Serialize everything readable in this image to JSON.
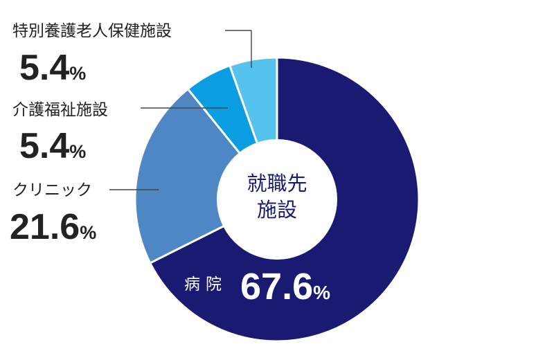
{
  "chart_data": {
    "type": "pie",
    "center_label": [
      "就職先",
      "施設"
    ],
    "categories": [
      "病院",
      "クリニック",
      "介護福祉施設",
      "特別養護老人保健施設"
    ],
    "values": [
      67.6,
      21.6,
      5.4,
      5.4
    ],
    "value_labels": [
      "67.6",
      "21.6",
      "5.4",
      "5.4"
    ],
    "unit": "%",
    "colors": [
      "#1b1a72",
      "#4f87c5",
      "#0a9de2",
      "#56c3ef"
    ],
    "start": "top",
    "direction": "clockwise"
  }
}
